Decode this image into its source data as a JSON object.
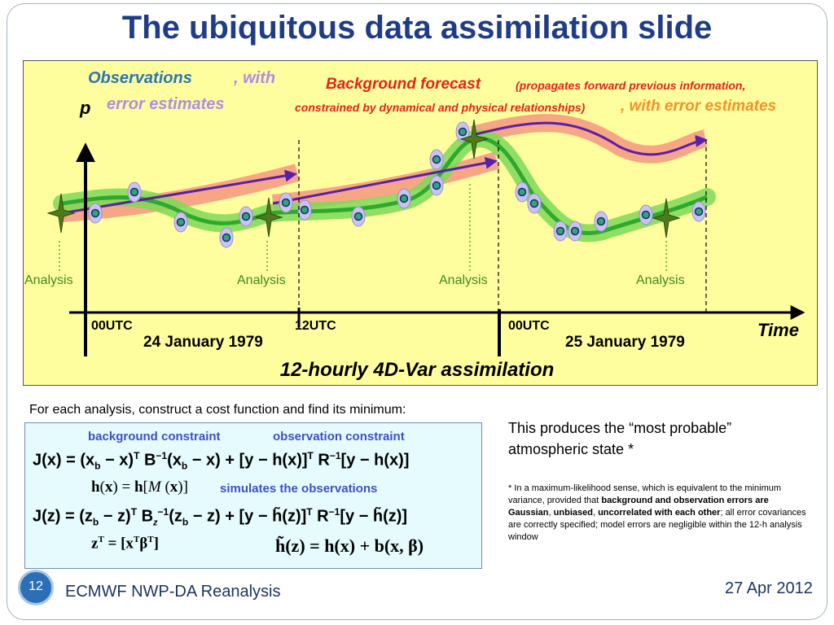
{
  "slide": {
    "title": "The ubiquitous data assimilation slide",
    "number": "12",
    "footer_left": "ECMWF NWP-DA Reanalysis",
    "footer_right": "27 Apr 2012"
  },
  "diagram": {
    "observations_label": "Observations",
    "observations_with": ", with",
    "observations_error": "error estimates",
    "background_label": "Background forecast",
    "background_paren_1": "(propagates forward previous information,",
    "background_paren_2": "constrained by dynamical and physical relationships)",
    "background_error": ", with error estimates",
    "y_axis_label": "p",
    "x_axis_label": "Time",
    "analysis_labels": [
      "Analysis",
      "Analysis",
      "Analysis",
      "Analysis"
    ],
    "time_labels": [
      "00UTC",
      "12UTC",
      "00UTC"
    ],
    "date_labels": [
      "24 January 1979",
      "25 January 1979"
    ],
    "caption": "12-hourly 4D-Var assimilation",
    "colors": {
      "panel": "#fffe9e",
      "background_band": "#f7a184",
      "analysis_band": "#7ed957",
      "trajectory": "#5a1fa8",
      "analysis_text": "#3d8a1f"
    }
  },
  "cost_function": {
    "intro": "For each analysis, construct a cost function and find its minimum:",
    "background_constraint": "background constraint",
    "observation_constraint": "observation constraint",
    "simulates": "simulates the observations"
  },
  "explanation": {
    "main": "This produces the “most probable” atmospheric state *",
    "footnote_a": "* In a maximum-likelihood sense, which is equivalent to the minimum variance, provided that ",
    "footnote_b": "background and observation errors are Gaussian",
    "footnote_c": ", ",
    "footnote_d": "unbiased",
    "footnote_e": ", ",
    "footnote_f": "uncorrelated with each other",
    "footnote_g": "; all error covariances are correctly specified; model errors are negligible within the 12-h analysis window"
  }
}
